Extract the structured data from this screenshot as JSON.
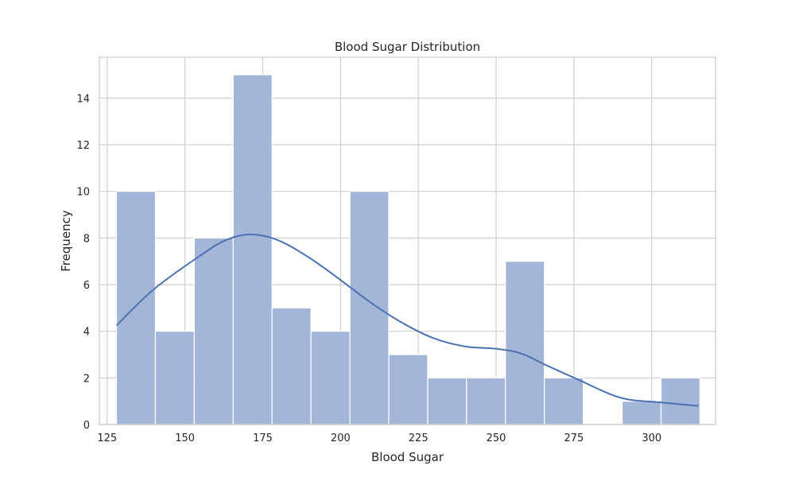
{
  "chart_data": {
    "type": "bar",
    "title": "Blood Sugar Distribution",
    "xlabel": "Blood Sugar",
    "ylabel": "Frequency",
    "xlim": [
      122.5,
      320.5
    ],
    "ylim": [
      0,
      15.75
    ],
    "x_ticks": [
      125,
      150,
      175,
      200,
      225,
      250,
      275,
      300
    ],
    "y_ticks": [
      0,
      2,
      4,
      6,
      8,
      10,
      12,
      14
    ],
    "grid": true,
    "bin_edges": [
      128,
      140.5,
      153,
      165.5,
      178,
      190.5,
      203,
      215.5,
      228,
      240.5,
      253,
      265.5,
      278,
      290.5,
      303,
      315.5
    ],
    "counts": [
      10,
      4,
      8,
      15,
      5,
      4,
      10,
      3,
      2,
      2,
      7,
      2,
      0,
      1,
      2
    ],
    "kde": {
      "x": [
        128,
        140,
        155,
        163,
        171,
        180,
        190,
        200,
        210,
        220,
        230,
        240,
        250,
        258,
        266,
        276,
        290,
        303,
        315
      ],
      "y": [
        4.25,
        5.8,
        7.25,
        7.9,
        8.15,
        7.9,
        7.15,
        6.2,
        5.2,
        4.35,
        3.7,
        3.35,
        3.25,
        3.05,
        2.55,
        1.95,
        1.15,
        0.95,
        0.8
      ]
    },
    "colors": {
      "bar_fill": "#a2b5d6",
      "bar_stroke": "#ffffff",
      "kde_line": "#4c72b0",
      "grid": "#cfcfcf",
      "frame": "#cfcfcf"
    }
  }
}
